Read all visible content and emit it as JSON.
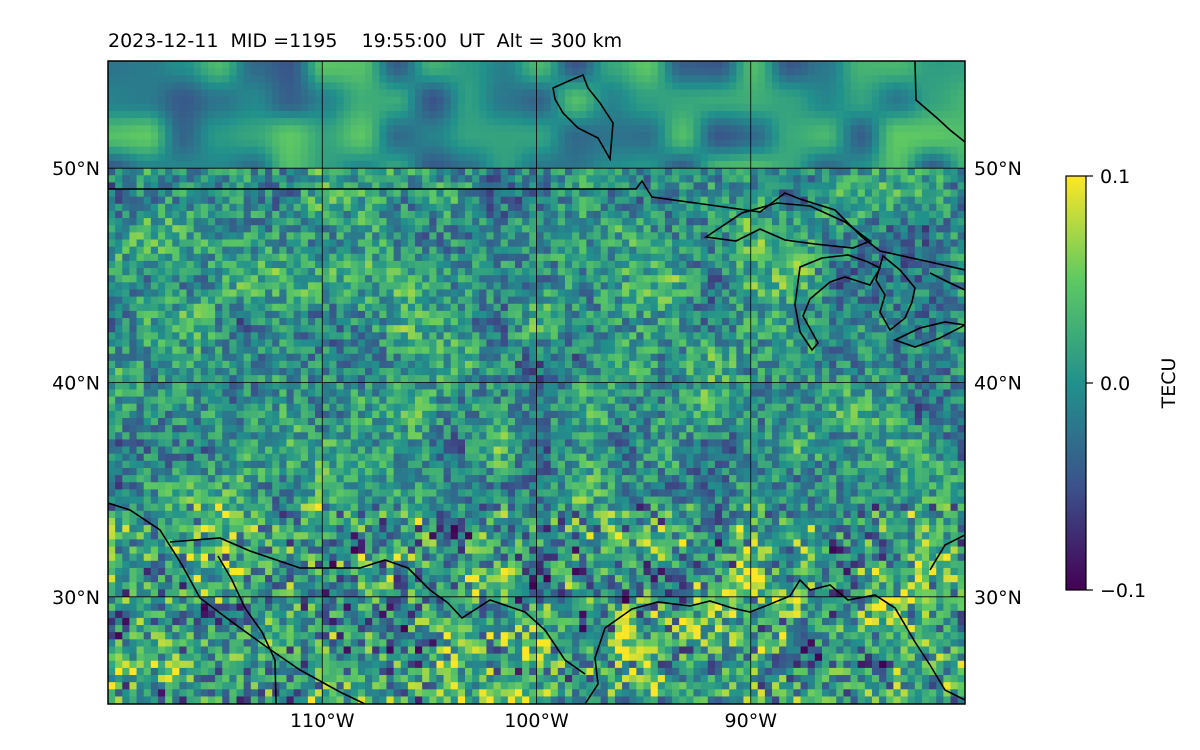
{
  "title": "2023-12-11  MID =1195    19:55:00  UT  Alt = 300 km",
  "map": {
    "extent": {
      "lon_min": -120,
      "lon_max": -80,
      "lat_min": 25,
      "lat_max": 55
    },
    "lon_ticks": [
      {
        "value": -110,
        "label": "110°W"
      },
      {
        "value": -100,
        "label": "100°W"
      },
      {
        "value": -90,
        "label": "90°W"
      }
    ],
    "lat_ticks": [
      {
        "value": 50,
        "label": "50°N"
      },
      {
        "value": 40,
        "label": "40°N"
      },
      {
        "value": 30,
        "label": "30°N"
      }
    ],
    "gridlines": true,
    "field_description": "TEC anomaly grid (viridis)"
  },
  "colorbar": {
    "label": "TECU",
    "ticks": [
      {
        "value": 0.1,
        "label": "0.1"
      },
      {
        "value": 0.0,
        "label": "0.0"
      },
      {
        "value": -0.1,
        "label": "−0.1"
      }
    ],
    "vmin": -0.1,
    "vmax": 0.1,
    "colormap": "viridis",
    "colors": [
      "#440154",
      "#3b528b",
      "#21918c",
      "#5ec962",
      "#fde725"
    ]
  }
}
